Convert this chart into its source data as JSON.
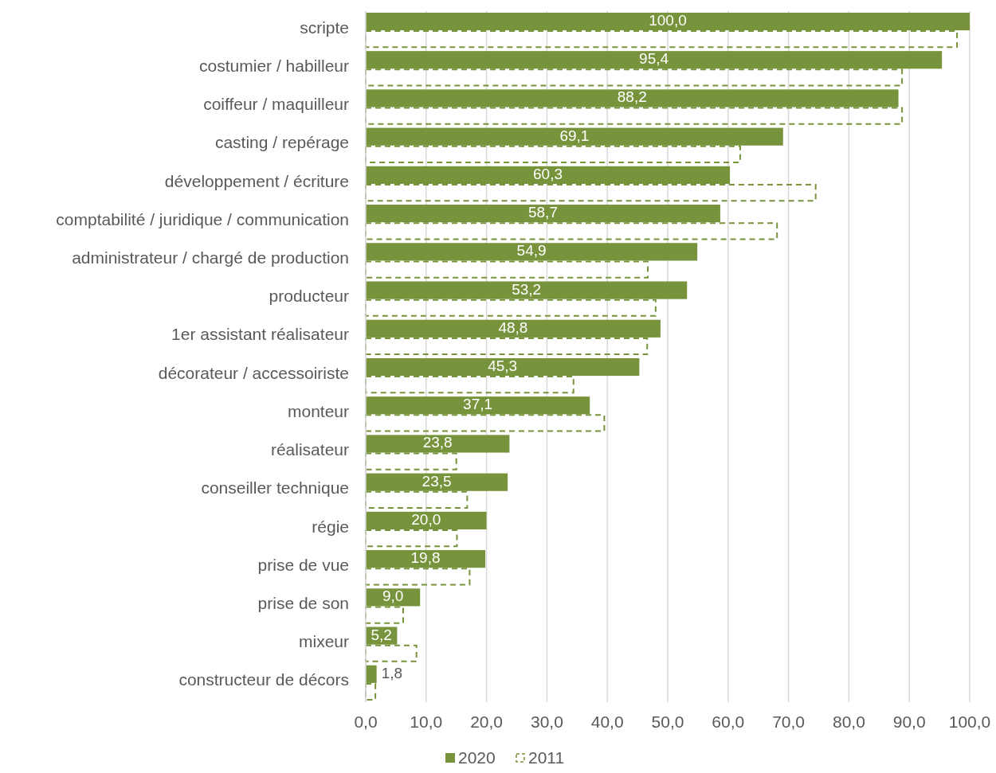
{
  "chart_data": {
    "type": "bar",
    "orientation": "horizontal",
    "categories": [
      "scripte",
      "costumier / habilleur",
      "coiffeur / maquilleur",
      "casting / repérage",
      "développement / écriture",
      "comptabilité / juridique / communication",
      "administrateur / chargé de production",
      "producteur",
      "1er assistant réalisateur",
      "décorateur / accessoiriste",
      "monteur",
      "réalisateur",
      "conseiller technique",
      "régie",
      "prise de vue",
      "prise de son",
      "mixeur",
      "constructeur de décors"
    ],
    "series": [
      {
        "name": "2020",
        "color": "#77933c",
        "values": [
          100.0,
          95.4,
          88.2,
          69.1,
          60.3,
          58.7,
          54.9,
          53.2,
          48.8,
          45.3,
          37.1,
          23.8,
          23.5,
          20.0,
          19.8,
          9.0,
          5.2,
          1.8
        ],
        "value_labels": [
          "100,0",
          "95,4",
          "88,2",
          "69,1",
          "60,3",
          "58,7",
          "54,9",
          "53,2",
          "48,8",
          "45,3",
          "37,1",
          "23,8",
          "23,5",
          "20,0",
          "19,8",
          "9,0",
          "5,2",
          "1,8"
        ]
      },
      {
        "name": "2011",
        "color": "#77933c",
        "line_style": "dashed",
        "values": [
          97.9,
          88.8,
          88.8,
          62.0,
          74.5,
          68.1,
          46.7,
          48.0,
          46.6,
          34.4,
          39.5,
          15.0,
          16.8,
          15.1,
          17.2,
          6.2,
          8.4,
          1.6
        ]
      }
    ],
    "xlim": [
      0,
      100
    ],
    "xticks": [
      {
        "value": 0,
        "label": "0,0"
      },
      {
        "value": 10,
        "label": "10,0"
      },
      {
        "value": 20,
        "label": "20,0"
      },
      {
        "value": 30,
        "label": "30,0"
      },
      {
        "value": 40,
        "label": "40,0"
      },
      {
        "value": 50,
        "label": "50,0"
      },
      {
        "value": 60,
        "label": "60,0"
      },
      {
        "value": 70,
        "label": "70,0"
      },
      {
        "value": 80,
        "label": "80,0"
      },
      {
        "value": 90,
        "label": "90,0"
      },
      {
        "value": 100,
        "label": "100,0"
      }
    ],
    "grid": "x",
    "legend": "bottom"
  }
}
